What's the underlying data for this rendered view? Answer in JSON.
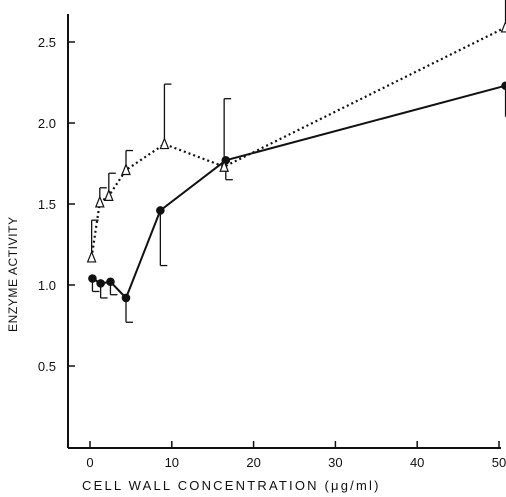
{
  "chart_data": {
    "type": "line",
    "xlabel": "CELL WALL CONCENTRATION (μg/ml)",
    "ylabel": "ENZYME ACTIVITY",
    "xlim": [
      -3,
      52
    ],
    "ylim": [
      0,
      2.7
    ],
    "xticks": [
      0,
      10,
      20,
      30,
      40,
      50
    ],
    "xtick_labels": [
      "0",
      "10",
      "20",
      "30",
      "40",
      "50"
    ],
    "yticks": [
      0.5,
      1.0,
      1.5,
      2.0,
      2.5
    ],
    "ytick_labels": [
      "0.5",
      "1.0",
      "1.5",
      "2.0",
      "2.5"
    ],
    "series": [
      {
        "style": "solid",
        "marker": "filled-circle",
        "color": "#111111",
        "points": [
          {
            "x": 0.3,
            "y": 1.04,
            "err": 0.08
          },
          {
            "x": 1.3,
            "y": 1.01,
            "err": 0.09
          },
          {
            "x": 2.5,
            "y": 1.02,
            "err": 0.08
          },
          {
            "x": 4.4,
            "y": 0.92,
            "err": 0.15
          },
          {
            "x": 8.6,
            "y": 1.46,
            "err": 0.34
          },
          {
            "x": 16.6,
            "y": 1.77,
            "err": 0.12
          },
          {
            "x": 50.8,
            "y": 2.23,
            "err": 0.19
          }
        ]
      },
      {
        "style": "dotted",
        "marker": "open-triangle",
        "color": "#111111",
        "points": [
          {
            "x": 0.2,
            "y": 1.17,
            "err": 0.23
          },
          {
            "x": 1.2,
            "y": 1.51,
            "err": 0.09
          },
          {
            "x": 2.3,
            "y": 1.55,
            "err": 0.14
          },
          {
            "x": 4.4,
            "y": 1.71,
            "err": 0.12
          },
          {
            "x": 9.1,
            "y": 1.87,
            "err": 0.37
          },
          {
            "x": 16.4,
            "y": 1.73,
            "err": 0.42
          },
          {
            "x": 50.8,
            "y": 2.59,
            "err": 0.29
          }
        ]
      }
    ]
  }
}
